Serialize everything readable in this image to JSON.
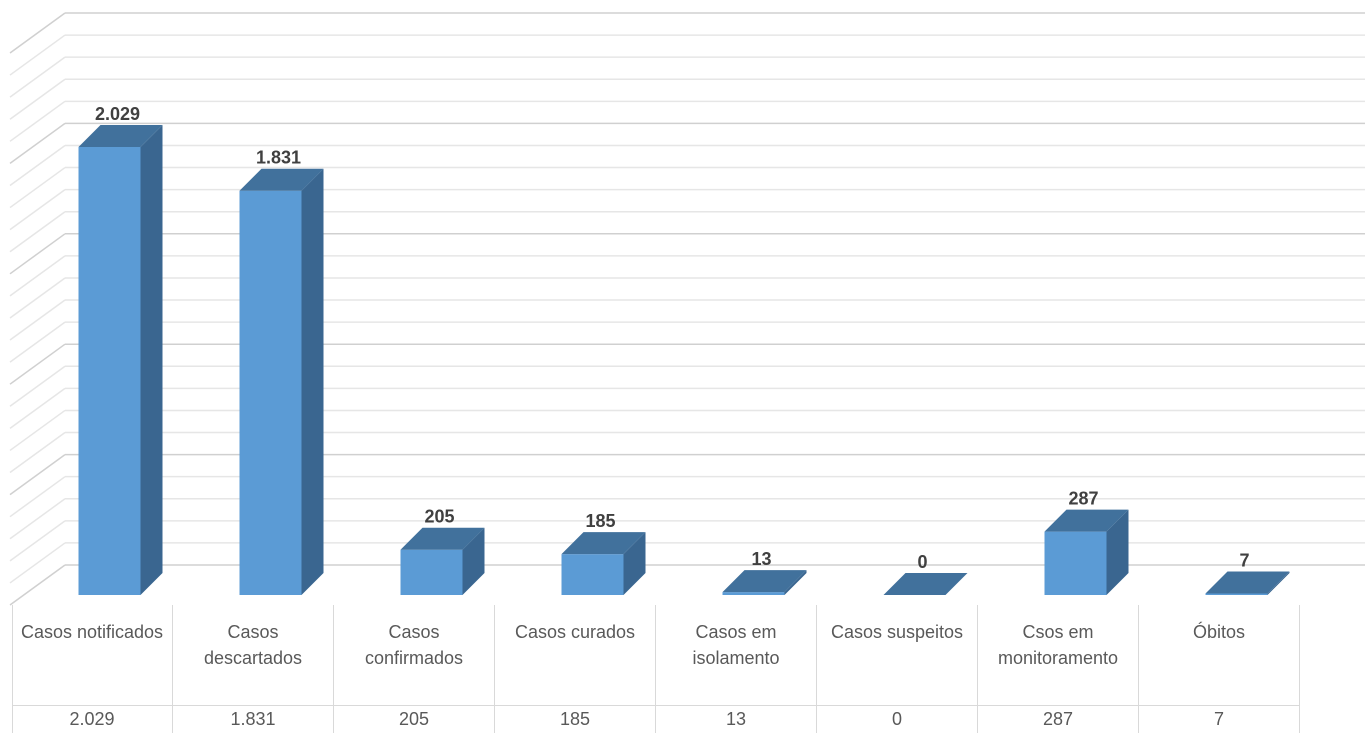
{
  "chart_data": {
    "type": "bar3d",
    "categories": [
      "Casos notificados",
      "Casos descartados",
      "Casos confirmados",
      "Casos curados",
      "Casos em isolamento",
      "Casos suspeitos",
      "Csos em monitoramento",
      "Óbitos"
    ],
    "values": [
      2029,
      1831,
      205,
      185,
      13,
      0,
      287,
      7
    ],
    "value_labels": [
      "2.029",
      "1.831",
      "205",
      "185",
      "13",
      "0",
      "287",
      "7"
    ],
    "color": "#5b9bd5",
    "ylim": [
      0,
      2500
    ],
    "yticks": [
      0,
      100,
      200,
      300,
      400,
      500,
      600,
      700,
      800,
      900,
      1000,
      1100,
      1200,
      1300,
      1400,
      1500,
      1600,
      1700,
      1800,
      1900,
      2000,
      2100,
      2200,
      2300,
      2400,
      2500
    ],
    "grid": true
  }
}
